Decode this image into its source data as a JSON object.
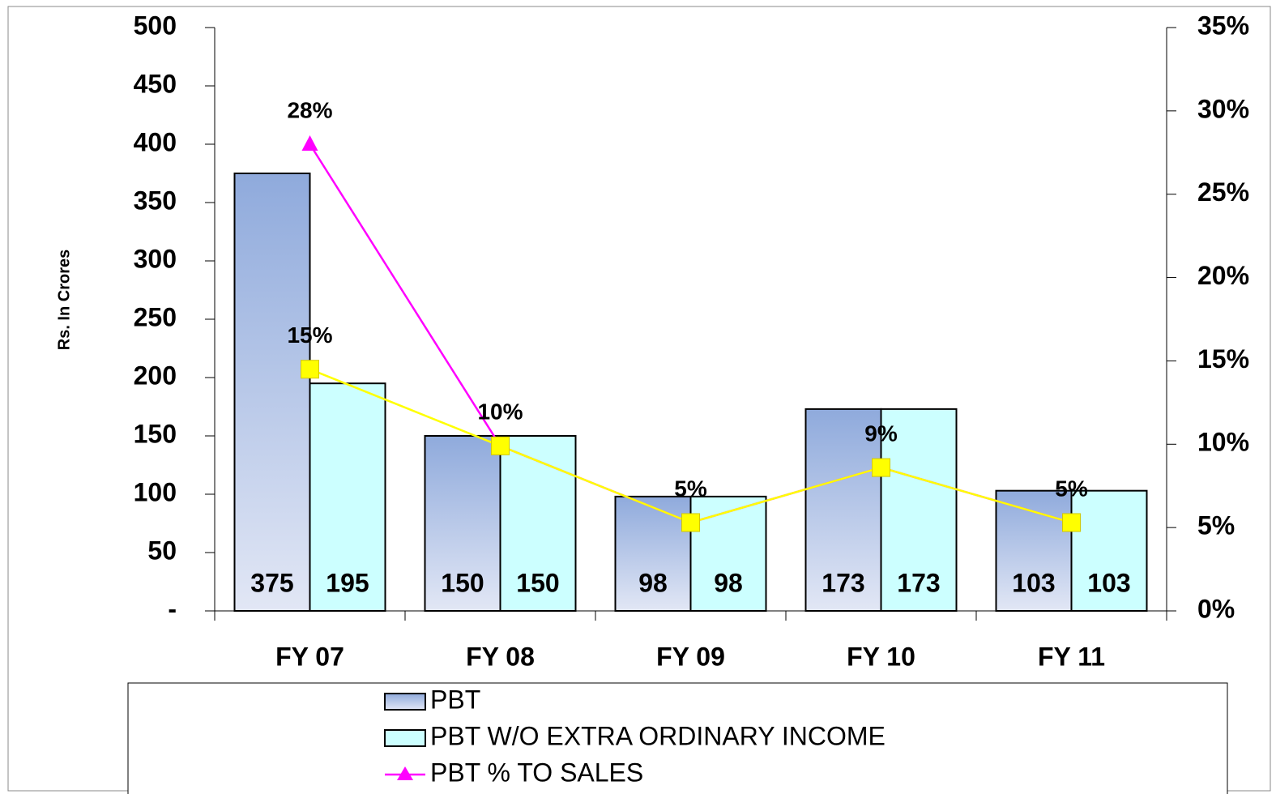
{
  "chart_data": {
    "type": "bar",
    "y_label": "Rs. In Crores",
    "categories": [
      "FY 07",
      "FY 08",
      "FY 09",
      "FY 10",
      "FY 11"
    ],
    "series": [
      {
        "name": "PBT",
        "type": "bar",
        "color": "#8faadc",
        "values": [
          375,
          150,
          98,
          173,
          103
        ]
      },
      {
        "name": "PBT  W/O EXTRA ORDINARY INCOME",
        "type": "bar",
        "color": "#ccffff",
        "values": [
          195,
          150,
          98,
          173,
          103
        ]
      },
      {
        "name": "PBT % TO SALES",
        "type": "line",
        "axis": "y2",
        "color": "#ff00ff",
        "marker": "triangle",
        "values": [
          28,
          9.9,
          5.3,
          8.6,
          5.3
        ],
        "value_labels": [
          "28%",
          null,
          null,
          null,
          null
        ]
      },
      {
        "type": "line",
        "axis": "y2",
        "color": "#ffff00",
        "marker": "square",
        "values": [
          14.5,
          9.9,
          5.3,
          8.6,
          5.3
        ],
        "value_labels": [
          "15%",
          "10%",
          "5%",
          "9%",
          "5%"
        ]
      }
    ],
    "ylim": [
      0,
      500
    ],
    "yticks": [
      {
        "value": 0,
        "label": "-"
      },
      50,
      100,
      150,
      200,
      250,
      300,
      350,
      400,
      450,
      500
    ],
    "y2lim": [
      0,
      35
    ],
    "y2ticks": [
      {
        "value": 0,
        "label": "0%"
      },
      {
        "value": 5,
        "label": "5%"
      },
      {
        "value": 10,
        "label": "10%"
      },
      {
        "value": 15,
        "label": "15%"
      },
      {
        "value": 20,
        "label": "20%"
      },
      {
        "value": 25,
        "label": "25%"
      },
      {
        "value": 30,
        "label": "30%"
      },
      {
        "value": 35,
        "label": "35%"
      }
    ],
    "legend": "bottom"
  }
}
